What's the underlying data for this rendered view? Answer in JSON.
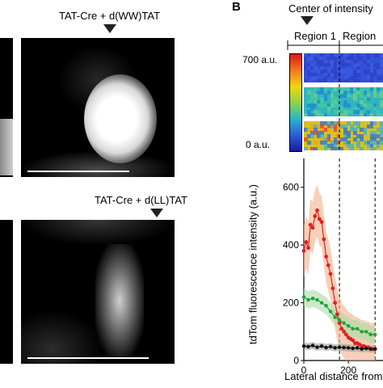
{
  "panel_a": {
    "top_label": "TAT-Cre + d(WW)TAT",
    "bottom_label": "TAT-Cre + d(LL)TAT"
  },
  "panel_b": {
    "letter": "B",
    "center_label": "Center of intensity",
    "region1_label": "Region 1",
    "region2_label": "Region",
    "colorbar": {
      "max_label": "700 a.u.",
      "min_label": "0 a.u.",
      "colors": [
        "#d7191c",
        "#f07820",
        "#f5d40f",
        "#8fd34a",
        "#28b6c7",
        "#2b5ed8",
        "#1a1aa0"
      ]
    },
    "heatmap_strips": [
      {
        "base": "#3450d8",
        "speckle": [
          "#2c40c8",
          "#3a5ee0"
        ]
      },
      {
        "base": "#2fb6c0",
        "speckle": [
          "#45c8a0",
          "#1f8ad0",
          "#70d080"
        ]
      },
      {
        "base": "#d8c020",
        "speckle": [
          "#e04020",
          "#f0a020",
          "#40b0d0",
          "#2a70d8"
        ]
      }
    ]
  },
  "chart_data": {
    "type": "line",
    "ylabel": "tdTom fluorescence intensity (a.u.)",
    "xlabel": "Lateral distance from",
    "xlim": [
      0,
      320
    ],
    "ylim": [
      0,
      700
    ],
    "xticks": [
      "0",
      "200"
    ],
    "yticks": [
      "0",
      "200",
      "400",
      "600"
    ],
    "dashed_lines_x": [
      160,
      320
    ],
    "series": [
      {
        "color": "#e02020",
        "band": "#f2b08a",
        "x": [
          0,
          10,
          20,
          30,
          40,
          50,
          60,
          70,
          80,
          90,
          100,
          110,
          120,
          130,
          140,
          150,
          160,
          170,
          180,
          190,
          200,
          210,
          220,
          230,
          240,
          250,
          260,
          270,
          280,
          290,
          300,
          310,
          320
        ],
        "y": [
          380,
          410,
          390,
          470,
          460,
          500,
          520,
          490,
          480,
          420,
          360,
          330,
          300,
          250,
          200,
          160,
          130,
          110,
          100,
          90,
          80,
          75,
          70,
          60,
          60,
          55,
          50,
          50,
          45,
          45,
          40,
          40,
          40
        ]
      },
      {
        "color": "#1fa33a",
        "band": "#a9dca5",
        "x": [
          0,
          20,
          40,
          60,
          80,
          100,
          120,
          140,
          160,
          180,
          200,
          220,
          240,
          260,
          280,
          300,
          320
        ],
        "y": [
          220,
          210,
          215,
          210,
          200,
          190,
          170,
          150,
          140,
          130,
          120,
          110,
          110,
          100,
          100,
          90,
          90
        ]
      },
      {
        "color": "#111111",
        "band": "#9a9a9a",
        "x": [
          0,
          20,
          40,
          60,
          80,
          100,
          120,
          140,
          160,
          180,
          200,
          220,
          240,
          260,
          280,
          300,
          320
        ],
        "y": [
          50,
          48,
          52,
          46,
          50,
          45,
          48,
          44,
          46,
          45,
          44,
          42,
          44,
          40,
          42,
          40,
          40
        ]
      }
    ]
  }
}
